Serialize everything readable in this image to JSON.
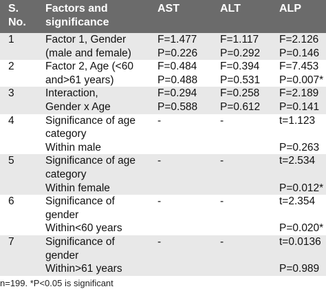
{
  "headers": {
    "sno": "S. No.",
    "sno_l1": "S.",
    "sno_l2": "No.",
    "factors_l1": "Factors and",
    "factors_l2": "significance",
    "ast": "AST",
    "alt": "ALT",
    "alp": "ALP"
  },
  "rows": [
    {
      "no": "1",
      "factor_lines": [
        "Factor 1, Gender",
        "(male and female)"
      ],
      "ast": [
        "F=1.477",
        "P=0.226"
      ],
      "alt": [
        "F=1.117",
        "P=0.292"
      ],
      "alp": [
        "F=2.126",
        "P=0.146"
      ]
    },
    {
      "no": "2",
      "factor_lines": [
        "Factor 2, Age (<60",
        "and>61 years)"
      ],
      "ast": [
        "F=0.484",
        "P=0.488"
      ],
      "alt": [
        "F=0.394",
        "P=0.531"
      ],
      "alp": [
        "F=7.453",
        "P=0.007*"
      ]
    },
    {
      "no": "3",
      "factor_lines": [
        "Interaction,",
        "Gender x Age"
      ],
      "ast": [
        "F=0.294",
        "P=0.588"
      ],
      "alt": [
        "F=0.258",
        "P=0.612"
      ],
      "alp": [
        "F=2.189",
        "P=0.141"
      ]
    },
    {
      "no": "4",
      "factor_lines": [
        "Significance of age",
        "category",
        "Within male"
      ],
      "ast": [
        "-"
      ],
      "alt": [
        "-"
      ],
      "alp": [
        "t=1.123",
        "",
        "P=0.263"
      ]
    },
    {
      "no": "5",
      "factor_lines": [
        "Significance of age",
        "category",
        "Within female"
      ],
      "ast": [
        "-"
      ],
      "alt": [
        "-"
      ],
      "alp": [
        "t=2.534",
        "",
        "P=0.012*"
      ]
    },
    {
      "no": "6",
      "factor_lines": [
        "Significance of",
        "gender",
        "Within<60 years"
      ],
      "ast": [
        "-"
      ],
      "alt": [
        "-"
      ],
      "alp": [
        "t=2.354",
        "",
        "P=0.020*"
      ]
    },
    {
      "no": "7",
      "factor_lines": [
        "Significance of",
        "gender",
        "Within>61 years"
      ],
      "ast": [
        "-"
      ],
      "alt": [
        "-"
      ],
      "alp": [
        "t=0.0136",
        "",
        "P=0.989"
      ]
    }
  ],
  "footnote": "n=199. *P<0.05 is significant"
}
